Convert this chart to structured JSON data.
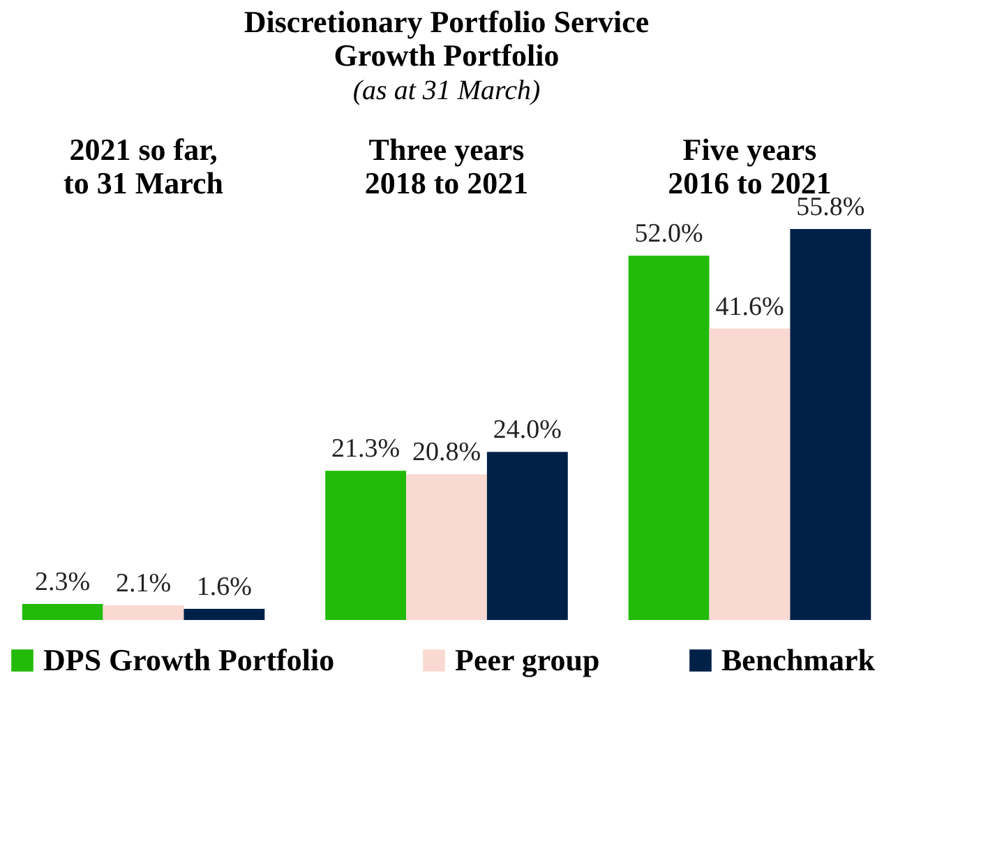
{
  "chart_data": {
    "type": "bar",
    "title": "Discretionary Portfolio Service\nGrowth Portfolio",
    "subtitle": "(as at 31 March)",
    "categories": [
      "2021 so far,\nto 31 March",
      "Three years\n2018 to 2021",
      "Five years\n2016 to 2021"
    ],
    "series": [
      {
        "name": "DPS Growth Portfolio",
        "color": "#22bb0a",
        "values": [
          2.3,
          21.3,
          52.0
        ],
        "value_labels": [
          "2.3%",
          "21.3%",
          "52.0%"
        ]
      },
      {
        "name": "Peer group",
        "color": "#f9d9d1",
        "values": [
          2.1,
          20.8,
          41.6
        ],
        "value_labels": [
          "2.1%",
          "20.8%",
          "41.6%"
        ]
      },
      {
        "name": "Benchmark",
        "color": "#002147",
        "values": [
          1.6,
          24.0,
          55.8
        ],
        "value_labels": [
          "1.6%",
          "24.0%",
          "55.8%"
        ]
      }
    ],
    "legend": "bottom",
    "grid": false
  }
}
